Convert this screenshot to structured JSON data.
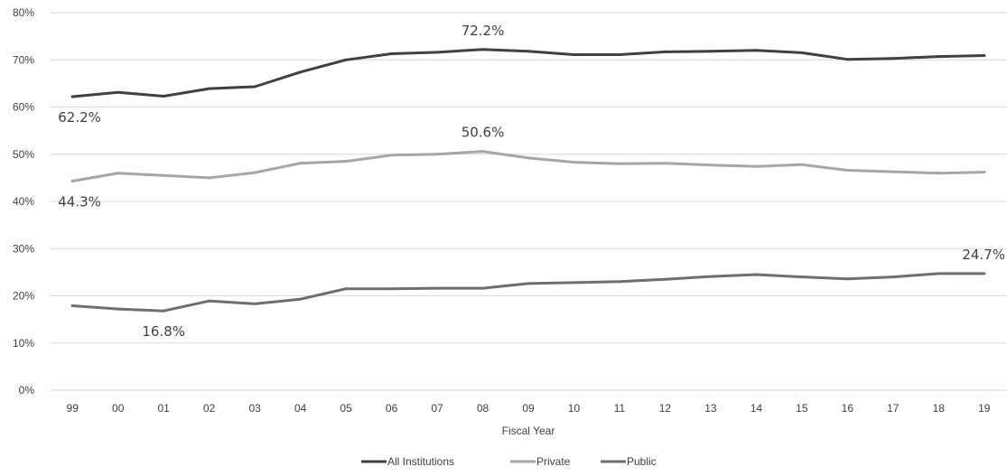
{
  "chart_data": {
    "type": "line",
    "xlabel": "Fiscal Year",
    "ylabel": "",
    "ylim": [
      0,
      80
    ],
    "y_ticks": [
      0,
      10,
      20,
      30,
      40,
      50,
      60,
      70,
      80
    ],
    "y_tick_labels": [
      "0%",
      "10%",
      "20%",
      "30%",
      "40%",
      "50%",
      "60%",
      "70%",
      "80%"
    ],
    "grid": true,
    "legend_position": "bottom",
    "categories": [
      "99",
      "00",
      "01",
      "02",
      "03",
      "04",
      "05",
      "06",
      "07",
      "08",
      "09",
      "10",
      "11",
      "12",
      "13",
      "14",
      "15",
      "16",
      "17",
      "18",
      "19"
    ],
    "series": [
      {
        "name": "All Institutions",
        "color": "#404040",
        "values": [
          62.2,
          63.1,
          62.3,
          63.9,
          64.3,
          67.4,
          70.0,
          71.3,
          71.6,
          72.2,
          71.8,
          71.1,
          71.1,
          71.7,
          71.8,
          72.0,
          71.5,
          70.1,
          70.3,
          70.7,
          70.9
        ]
      },
      {
        "name": "Private",
        "color": "#a6a6a6",
        "values": [
          44.3,
          46.0,
          45.5,
          45.0,
          46.1,
          48.1,
          48.5,
          49.8,
          50.0,
          50.6,
          49.2,
          48.3,
          48.0,
          48.1,
          47.7,
          47.4,
          47.8,
          46.6,
          46.3,
          46.0,
          46.2
        ]
      },
      {
        "name": "Public",
        "color": "#6e6e6e",
        "values": [
          17.9,
          17.2,
          16.8,
          18.9,
          18.3,
          19.3,
          21.5,
          21.5,
          21.6,
          21.6,
          22.6,
          22.8,
          23.0,
          23.5,
          24.1,
          24.5,
          24.0,
          23.6,
          24.0,
          24.7,
          24.7
        ]
      }
    ],
    "annotations": [
      {
        "text": "72.2%",
        "series": 0,
        "index": 9,
        "anchor": "above"
      },
      {
        "text": "62.2%",
        "series": 0,
        "index": 0,
        "anchor": "below"
      },
      {
        "text": "50.6%",
        "series": 1,
        "index": 9,
        "anchor": "above"
      },
      {
        "text": "44.3%",
        "series": 1,
        "index": 0,
        "anchor": "below"
      },
      {
        "text": "16.8%",
        "series": 2,
        "index": 2,
        "anchor": "below"
      },
      {
        "text": "24.7%",
        "series": 2,
        "index": 20,
        "anchor": "above"
      }
    ]
  }
}
